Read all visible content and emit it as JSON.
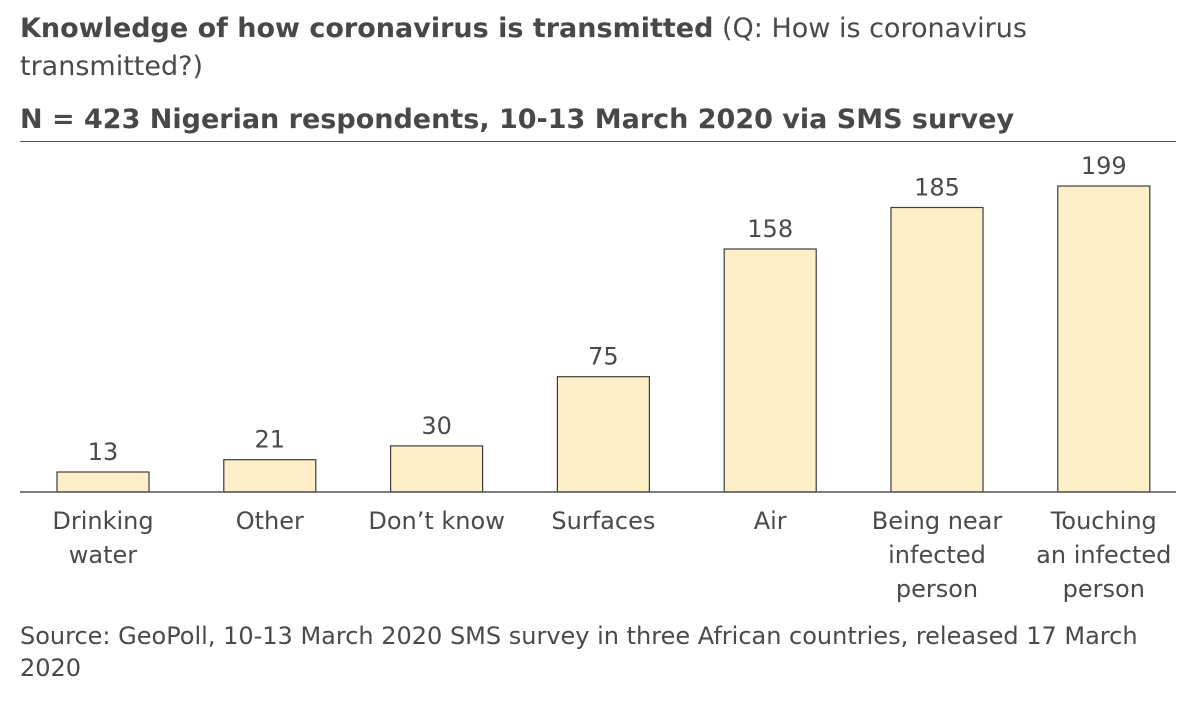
{
  "header": {
    "title_bold": "Knowledge of how coronavirus is transmitted",
    "title_rest": " (Q: How is coronavirus transmitted?)",
    "subtitle": "N = 423 Nigerian respondents, 10-13 March 2020 via SMS survey"
  },
  "footer": {
    "source": "Source: GeoPoll, 10-13 March 2020 SMS survey in three African countries, released 17 March 2020"
  },
  "colors": {
    "bar_fill": "#fdefc8",
    "bar_stroke": "#3c3c3c",
    "text": "#4a4a4a",
    "axis": "#555555"
  },
  "chart_data": {
    "type": "bar",
    "categories": [
      "Drinking water",
      "Other",
      "Don’t know",
      "Surfaces",
      "Air",
      "Being near infected person",
      "Touching an infected person"
    ],
    "values": [
      13,
      21,
      30,
      75,
      158,
      185,
      199
    ],
    "data_labels": [
      "13",
      "21",
      "30",
      "75",
      "158",
      "185",
      "199"
    ],
    "title": "Knowledge of how coronavirus is transmitted (Q: How is coronavirus transmitted?)",
    "subtitle": "N = 423 Nigerian respondents, 10-13 March 2020 via SMS survey",
    "xlabel": "",
    "ylabel": "",
    "ylim": [
      0,
      199
    ],
    "grid": false,
    "legend": "none"
  }
}
